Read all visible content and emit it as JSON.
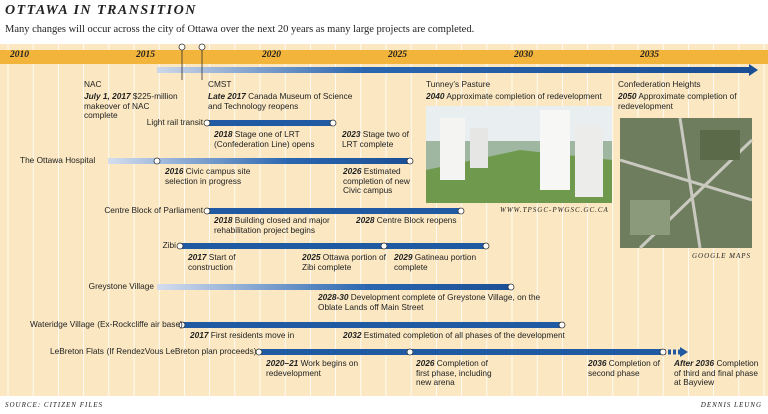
{
  "header": {
    "title": "OTTAWA IN TRANSITION",
    "subtitle": "Many changes will occur across the city of Ottawa over the next 20 years as many large projects are completed."
  },
  "axis": {
    "years": [
      2010,
      2015,
      2020,
      2025,
      2030,
      2035
    ]
  },
  "projects": [
    {
      "name": "NAC",
      "events": [
        {
          "year": "July 1, 2017",
          "text": "$225-million makeover of NAC complete"
        }
      ]
    },
    {
      "name": "CMST",
      "events": [
        {
          "year": "Late 2017",
          "text": "Canada Museum of Science and Technology reopens"
        }
      ]
    },
    {
      "name": "Tunney’s Pasture",
      "events": [
        {
          "year": "2040",
          "text": "Approximate completion of redevelopment"
        }
      ],
      "credit": "WWW.TPSGC-PWGSC.GC.CA"
    },
    {
      "name": "Confederation Heights",
      "events": [
        {
          "year": "2050",
          "text": "Approximate completion of redevelopment"
        }
      ],
      "credit": "GOOGLE MAPS"
    },
    {
      "name": "Light rail transit",
      "events": [
        {
          "year": "2018",
          "text": "Stage one of LRT (Confederation Line) opens"
        },
        {
          "year": "2023",
          "text": "Stage two of LRT complete"
        }
      ]
    },
    {
      "name": "The Ottawa Hospital",
      "events": [
        {
          "year": "2016",
          "text": "Civic campus site selection in progress"
        },
        {
          "year": "2026",
          "text": "Estimated completion of new Civic campus"
        }
      ]
    },
    {
      "name": "Centre Block of Parliament",
      "events": [
        {
          "year": "2018",
          "text": "Building closed and major rehabilitation project begins"
        },
        {
          "year": "2028",
          "text": "Centre Block reopens"
        }
      ]
    },
    {
      "name": "Zibi",
      "events": [
        {
          "year": "2017",
          "text": "Start of construction"
        },
        {
          "year": "2025",
          "text": "Ottawa portion of Zibi complete"
        },
        {
          "year": "2029",
          "text": "Gatineau portion complete"
        }
      ]
    },
    {
      "name": "Greystone Village",
      "events": [
        {
          "year": "2028-30",
          "text": "Development complete of Greystone Village, on the Oblate Lands off Main Street"
        }
      ]
    },
    {
      "name": "Wateridge Village",
      "note": "(Ex-Rockcliffe air base)",
      "events": [
        {
          "year": "2017",
          "text": "First residents move in"
        },
        {
          "year": "2032",
          "text": "Estimated completion of all phases of the development"
        }
      ]
    },
    {
      "name": "LeBreton Flats",
      "note": "(If RendezVous LeBreton plan proceeds)",
      "events": [
        {
          "year": "2020–21",
          "text": "Work begins on redevelopment"
        },
        {
          "year": "2026",
          "text": "Completion of first phase, including new arena"
        },
        {
          "year": "2036",
          "text": "Completion of second phase"
        },
        {
          "year": "After 2036",
          "text": "Completion of third and final phase at Bayview"
        }
      ]
    }
  ],
  "footer": {
    "source": "SOURCE: CITIZEN FILES",
    "credit": "DENNIS LEUNG"
  }
}
